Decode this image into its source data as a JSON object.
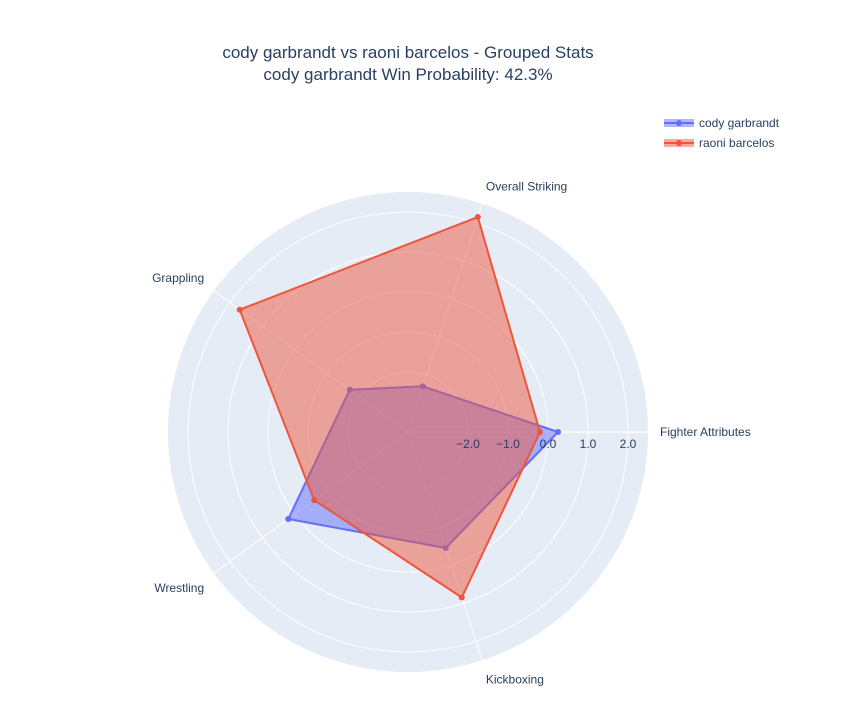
{
  "chart_data": {
    "type": "radar",
    "title": "cody garbrandt vs raoni barcelos - Grouped Stats",
    "subtitle": "cody garbrandt Win Probability: 42.3%",
    "categories": [
      "Fighter Attributes",
      "Overall Striking",
      "Grappling",
      "Wrestling",
      "Kickboxing"
    ],
    "radial_range": [
      -3.5,
      2.5
    ],
    "radial_ticks": [
      -2,
      -1,
      0,
      1,
      2
    ],
    "radial_tick_labels": [
      "−2.0",
      "−1.0",
      "0.0",
      "1.0",
      "2.0"
    ],
    "series": [
      {
        "name": "cody garbrandt",
        "color": "#636efa",
        "values": [
          0.25,
          -2.3,
          -1.7,
          0.2,
          -0.45
        ]
      },
      {
        "name": "raoni barcelos",
        "color": "#ef553b",
        "values": [
          -0.2,
          2.15,
          1.7,
          -0.6,
          0.85
        ]
      }
    ],
    "legend_position": "top-right",
    "grid": true
  }
}
